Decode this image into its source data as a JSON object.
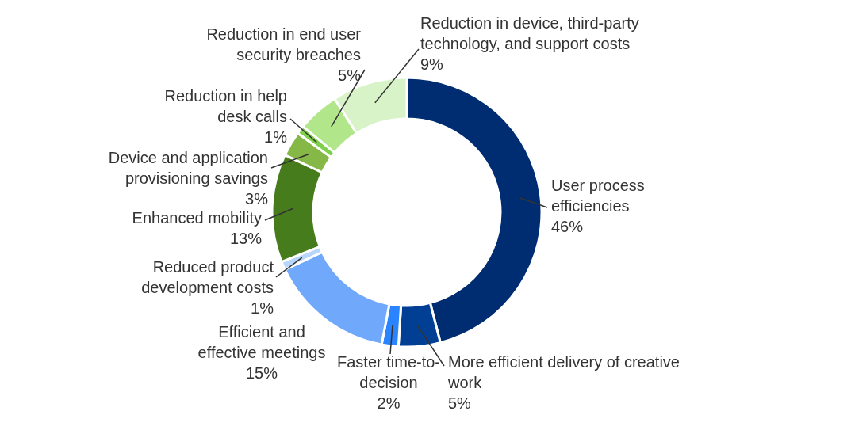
{
  "chart_data": {
    "type": "donut",
    "categories": [
      "User process efficiencies",
      "More efficient delivery of creative work",
      "Faster time-to-decision",
      "Efficient and effective meetings",
      "Reduced product development costs",
      "Enhanced mobility",
      "Device and application provisioning savings",
      "Reduction in help desk calls",
      "Reduction in end user security breaches",
      "Reduction in device, third-party technology, and support costs"
    ],
    "values": [
      46,
      5,
      2,
      15,
      1,
      13,
      3,
      1,
      5,
      9
    ],
    "value_labels": [
      "46%",
      "5%",
      "2%",
      "15%",
      "1%",
      "13%",
      "3%",
      "1%",
      "5%",
      "9%"
    ],
    "colors": [
      "#002d72",
      "#003f94",
      "#2a84ff",
      "#70a8fc",
      "#b8d6fc",
      "#467c1c",
      "#86b847",
      "#7ed04a",
      "#b2e68a",
      "#d8f3c8"
    ]
  }
}
